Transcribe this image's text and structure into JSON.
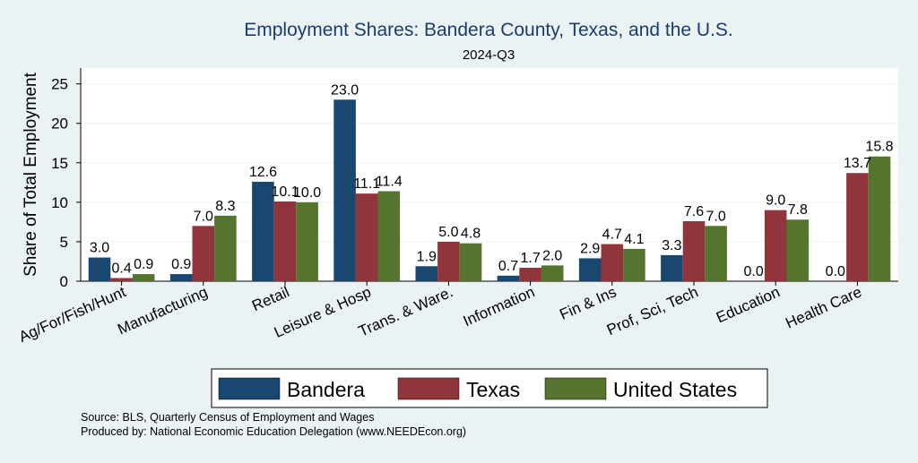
{
  "chart_data": {
    "type": "bar",
    "title": "Employment Shares: Bandera County, Texas, and the U.S.",
    "subtitle": "2024-Q3",
    "xlabel": "",
    "ylabel": "Share of Total Employment",
    "ylim": [
      0,
      27
    ],
    "yticks": [
      0,
      5,
      10,
      15,
      20,
      25
    ],
    "grid": true,
    "legend_position": "bottom",
    "categories": [
      "Ag/For/Fish/Hunt",
      "Manufacturing",
      "Retail",
      "Leisure & Hosp",
      "Trans. & Ware.",
      "Information",
      "Fin & Ins",
      "Prof, Sci, Tech",
      "Education",
      "Health Care"
    ],
    "series": [
      {
        "name": "Bandera",
        "color": "#1a476f",
        "values": [
          3.0,
          0.9,
          12.6,
          23.0,
          1.9,
          0.7,
          2.9,
          3.3,
          0.0,
          0.0
        ],
        "labels": [
          "3.0",
          "0.9",
          "12.6",
          "23.0",
          "1.9",
          "0.7",
          "2.9",
          "3.3",
          "0.0",
          "0.0"
        ]
      },
      {
        "name": "Texas",
        "color": "#90353b",
        "values": [
          0.4,
          7.0,
          10.1,
          11.1,
          5.0,
          1.7,
          4.7,
          7.6,
          9.0,
          13.7
        ],
        "labels": [
          "0.4",
          "7.0",
          "10.1",
          "11.1",
          "5.0",
          "1.7",
          "4.7",
          "7.6",
          "9.0",
          "13.7"
        ]
      },
      {
        "name": "United States",
        "color": "#55752f",
        "values": [
          0.9,
          8.3,
          10.0,
          11.4,
          4.8,
          2.0,
          4.1,
          7.0,
          7.8,
          15.8
        ],
        "labels": [
          "0.9",
          "8.3",
          "10.0",
          "11.4",
          "4.8",
          "2.0",
          "4.1",
          "7.0",
          "7.8",
          "15.8"
        ]
      }
    ]
  },
  "notes": {
    "source": "Source: BLS, Quarterly Census of Employment and Wages",
    "produced_by": "Produced by: National Economic Education Delegation (www.NEEDEcon.org)"
  }
}
